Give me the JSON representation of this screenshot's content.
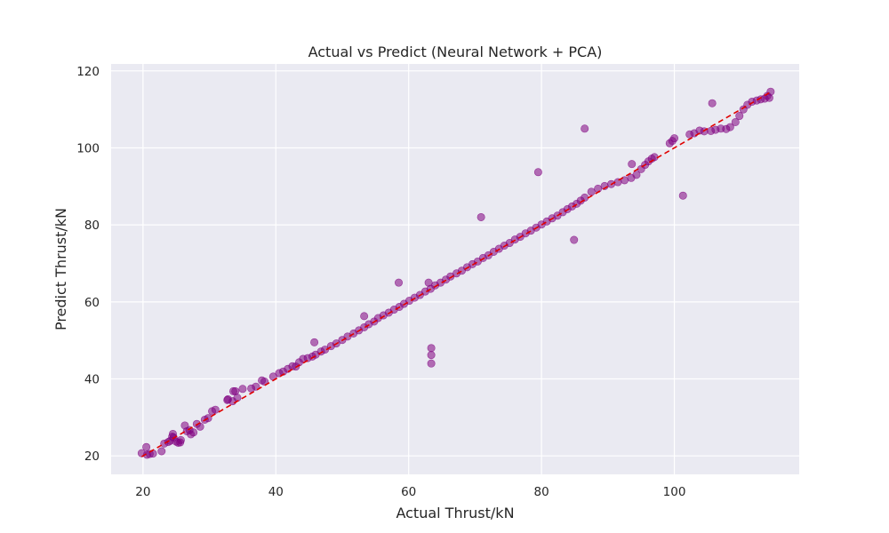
{
  "chart_data": {
    "type": "scatter",
    "title": "Actual vs Predict (Neural Network + PCA)",
    "xlabel": "Actual Thrust/kN",
    "ylabel": "Predict Thrust/kN",
    "xlim": [
      15.2,
      118.8
    ],
    "ylim": [
      15.2,
      121.8
    ],
    "xticks": [
      20,
      40,
      60,
      80,
      100
    ],
    "yticks": [
      20,
      40,
      60,
      80,
      100,
      120
    ],
    "grid": true,
    "point_color": "#800080",
    "point_opacity": 0.55,
    "reference_line": {
      "x": [
        19.8,
        114.5
      ],
      "y": [
        19.8,
        114.5
      ],
      "color": "#e00000",
      "style": "dashed"
    },
    "series": [
      {
        "x": [
          19.8,
          20.6,
          21.0,
          21.5,
          22.8,
          23.2,
          23.8,
          24.1,
          24.4,
          24.6,
          25.0,
          25.3,
          25.6,
          26.3,
          26.6,
          27.0,
          27.2,
          27.6,
          28.1,
          28.6,
          29.3,
          29.8,
          30.4,
          30.9,
          32.7,
          33.5,
          33.9,
          34.2,
          35.0,
          36.3,
          37.0,
          37.9,
          38.3,
          39.6,
          40.5,
          41.1,
          41.8,
          42.5,
          43.0,
          43.5,
          44.1,
          44.8,
          45.5,
          46.0,
          46.8,
          47.4,
          48.3,
          49.1,
          50.0,
          50.8,
          51.7,
          52.5,
          53.3,
          54.0,
          54.8,
          55.4,
          56.2,
          57.0,
          57.8,
          58.6,
          59.3,
          60.1,
          60.9,
          61.7,
          62.5,
          63.3,
          64.0,
          64.8,
          65.6,
          66.3,
          67.2,
          68.0,
          68.8,
          69.6,
          70.4,
          71.2,
          72.0,
          72.8,
          73.6,
          74.4,
          75.2,
          76.0,
          76.8,
          77.6,
          78.4,
          79.2,
          80.0,
          80.8,
          81.6,
          82.4,
          83.2,
          83.9,
          84.6,
          85.3,
          85.9,
          86.5,
          87.5,
          88.5,
          89.5,
          90.5,
          91.5,
          92.5,
          93.5,
          94.3,
          95.0,
          95.6,
          96.1,
          96.6,
          97.0,
          99.3,
          99.7,
          100.0,
          102.3,
          103.0,
          103.8,
          104.5,
          105.5,
          106.2,
          107.0,
          107.8,
          108.4,
          109.2,
          109.8,
          110.4,
          111.0,
          111.7,
          112.4,
          113.0,
          113.6,
          114.0,
          114.3,
          114.5,
          45.8,
          53.3,
          58.5,
          63.0,
          70.9,
          79.5,
          84.9,
          86.5,
          93.6,
          101.3,
          105.7,
          63.4,
          63.4,
          63.4,
          20.5,
          25.7,
          33.6,
          32.8,
          24.5
        ],
        "y": [
          20.7,
          20.3,
          20.5,
          20.6,
          21.2,
          23.2,
          23.6,
          23.9,
          25.0,
          24.8,
          23.7,
          23.4,
          23.5,
          27.9,
          26.4,
          26.7,
          25.6,
          26.1,
          28.3,
          27.6,
          29.4,
          29.8,
          31.6,
          32.0,
          34.5,
          34.2,
          36.8,
          35.1,
          37.4,
          37.5,
          38.0,
          39.6,
          39.3,
          40.6,
          41.5,
          41.9,
          42.6,
          43.3,
          43.2,
          44.3,
          45.2,
          45.4,
          45.8,
          46.3,
          47.1,
          47.6,
          48.5,
          49.2,
          50.1,
          51.0,
          51.8,
          52.6,
          53.4,
          54.2,
          54.9,
          55.8,
          56.5,
          57.2,
          58.0,
          58.7,
          59.5,
          60.3,
          61.1,
          61.8,
          62.7,
          63.4,
          64.3,
          65.0,
          65.8,
          66.6,
          67.4,
          68.1,
          69.0,
          69.8,
          70.5,
          71.4,
          72.1,
          73.0,
          73.8,
          74.6,
          75.3,
          76.2,
          76.9,
          77.8,
          78.5,
          79.3,
          80.1,
          80.9,
          81.7,
          82.4,
          83.3,
          84.1,
          84.8,
          85.5,
          86.3,
          87.1,
          88.6,
          89.4,
          90.1,
          90.6,
          91.1,
          91.6,
          92.2,
          93.0,
          94.5,
          95.6,
          96.5,
          97.2,
          97.6,
          101.2,
          101.8,
          102.5,
          103.5,
          103.8,
          104.5,
          104.3,
          104.4,
          104.7,
          105.0,
          104.9,
          105.4,
          106.7,
          108.3,
          110.0,
          111.2,
          112.0,
          112.3,
          112.6,
          112.8,
          113.5,
          113.0,
          114.6,
          49.5,
          56.3,
          65.0,
          65.0,
          82.0,
          93.7,
          76.1,
          105.0,
          95.8,
          87.6,
          111.6,
          48.0,
          46.2,
          44.0,
          22.3,
          24.1,
          36.8,
          34.7,
          25.7
        ]
      }
    ]
  }
}
